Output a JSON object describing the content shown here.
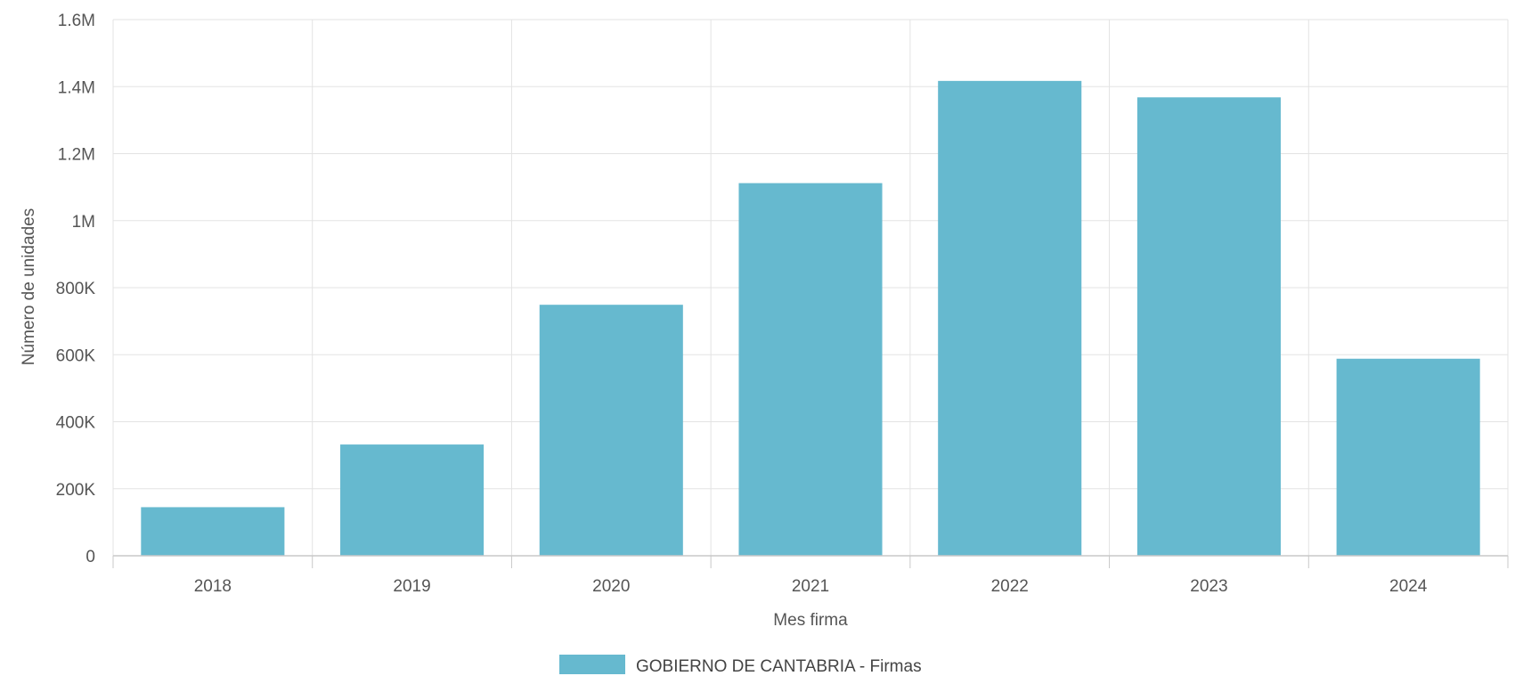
{
  "chart_data": {
    "type": "bar",
    "title": "",
    "xlabel": "Mes firma",
    "ylabel": "Número de unidades",
    "categories": [
      "2018",
      "2019",
      "2020",
      "2021",
      "2022",
      "2023",
      "2024"
    ],
    "series": [
      {
        "name": "GOBIERNO DE CANTABRIA - Firmas",
        "color": "#66b9cf",
        "values": [
          145000,
          332000,
          749000,
          1112000,
          1417000,
          1368000,
          588000
        ]
      }
    ],
    "ylim": [
      0,
      1600000
    ],
    "yticks": [
      {
        "value": 0,
        "label": "0"
      },
      {
        "value": 200000,
        "label": "200K"
      },
      {
        "value": 400000,
        "label": "400K"
      },
      {
        "value": 600000,
        "label": "600K"
      },
      {
        "value": 800000,
        "label": "800K"
      },
      {
        "value": 1000000,
        "label": "1M"
      },
      {
        "value": 1200000,
        "label": "1.2M"
      },
      {
        "value": 1400000,
        "label": "1.4M"
      },
      {
        "value": 1600000,
        "label": "1.6M"
      }
    ],
    "grid": true,
    "legend_position": "bottom-center",
    "grid_color": "#e3e3e3",
    "axis_color": "#c8c8c8"
  }
}
